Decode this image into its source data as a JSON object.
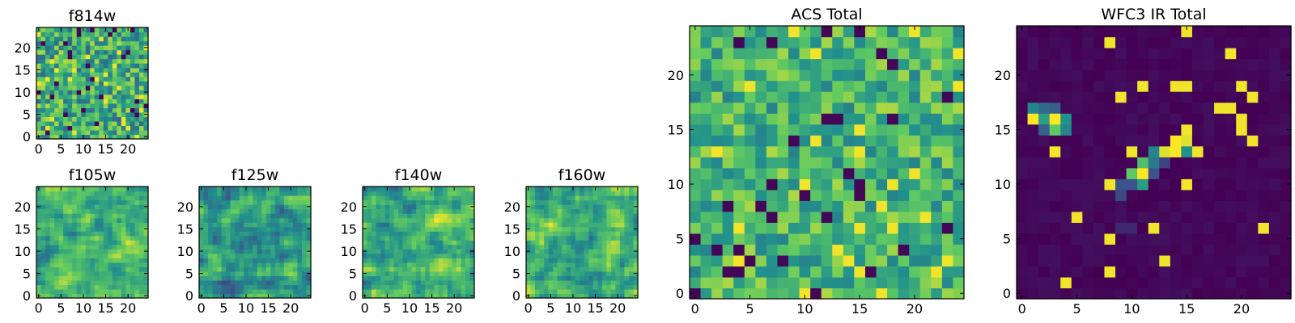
{
  "colormap": {
    "name": "viridis",
    "stops": [
      "#440154",
      "#3b528b",
      "#21918c",
      "#5ec962",
      "#fde725"
    ]
  },
  "chart_data": [
    {
      "type": "heatmap",
      "id": "f814w",
      "title": "f814w",
      "grid": [
        25,
        25
      ],
      "xticks": [
        "0",
        "5",
        "10",
        "15",
        "20"
      ],
      "yticks": [
        "0",
        "5",
        "10",
        "15",
        "20"
      ],
      "xlim": [
        0,
        25
      ],
      "ylim": [
        0,
        25
      ],
      "pattern": "noise",
      "seed": 814,
      "mean": 0.62,
      "spread": 0.3,
      "peaks": []
    },
    {
      "type": "heatmap",
      "id": "f105w",
      "title": "f105w",
      "grid": [
        25,
        25
      ],
      "xticks": [
        "0",
        "5",
        "10",
        "15",
        "20"
      ],
      "yticks": [
        "0",
        "5",
        "10",
        "15",
        "20"
      ],
      "xlim": [
        0,
        25
      ],
      "ylim": [
        0,
        25
      ],
      "pattern": "smooth",
      "seed": 105,
      "mean": 0.66,
      "spread": 0.28,
      "peaks": []
    },
    {
      "type": "heatmap",
      "id": "f125w",
      "title": "f125w",
      "grid": [
        25,
        25
      ],
      "xticks": [
        "0",
        "5",
        "10",
        "15",
        "20"
      ],
      "yticks": [
        "0",
        "5",
        "10",
        "15",
        "20"
      ],
      "xlim": [
        0,
        25
      ],
      "ylim": [
        0,
        25
      ],
      "pattern": "smooth",
      "seed": 125,
      "mean": 0.55,
      "spread": 0.3,
      "peaks": []
    },
    {
      "type": "heatmap",
      "id": "f140w",
      "title": "f140w",
      "grid": [
        25,
        25
      ],
      "xticks": [
        "0",
        "5",
        "10",
        "15",
        "20"
      ],
      "yticks": [
        "0",
        "5",
        "10",
        "15",
        "20"
      ],
      "xlim": [
        0,
        25
      ],
      "ylim": [
        0,
        25
      ],
      "pattern": "smooth",
      "seed": 140,
      "mean": 0.65,
      "spread": 0.28,
      "peaks": []
    },
    {
      "type": "heatmap",
      "id": "f160w",
      "title": "f160w",
      "grid": [
        25,
        25
      ],
      "xticks": [
        "0",
        "5",
        "10",
        "15",
        "20"
      ],
      "yticks": [
        "0",
        "5",
        "10",
        "15",
        "20"
      ],
      "xlim": [
        0,
        25
      ],
      "ylim": [
        0,
        25
      ],
      "pattern": "smooth",
      "seed": 160,
      "mean": 0.64,
      "spread": 0.28,
      "peaks": []
    },
    {
      "type": "heatmap",
      "id": "acs-total",
      "title": "ACS Total",
      "grid": [
        25,
        25
      ],
      "xticks": [
        "0",
        "5",
        "10",
        "15",
        "20"
      ],
      "yticks": [
        "0",
        "5",
        "10",
        "15",
        "20"
      ],
      "xlim": [
        0,
        25
      ],
      "ylim": [
        0,
        25
      ],
      "pattern": "noise",
      "seed": 2017,
      "mean": 0.66,
      "spread": 0.24,
      "peaks": []
    },
    {
      "type": "heatmap",
      "id": "wfc3-ir-total",
      "title": "WFC3 IR Total",
      "grid": [
        25,
        25
      ],
      "xticks": [
        "0",
        "5",
        "10",
        "15",
        "20"
      ],
      "yticks": [
        "0",
        "5",
        "10",
        "15",
        "20"
      ],
      "xlim": [
        0,
        25
      ],
      "ylim": [
        0,
        25
      ],
      "pattern": "background",
      "seed": 3,
      "mean": 0.02,
      "spread": 0.03,
      "peaks": [
        {
          "x": 1,
          "y": 17,
          "v": 0.45
        },
        {
          "x": 2,
          "y": 17,
          "v": 0.35
        },
        {
          "x": 3,
          "y": 17,
          "v": 0.3
        },
        {
          "x": 1,
          "y": 16,
          "v": 1.0
        },
        {
          "x": 2,
          "y": 16,
          "v": 0.55
        },
        {
          "x": 3,
          "y": 16,
          "v": 1.0
        },
        {
          "x": 4,
          "y": 16,
          "v": 0.5
        },
        {
          "x": 2,
          "y": 15,
          "v": 0.3
        },
        {
          "x": 3,
          "y": 15,
          "v": 0.75
        },
        {
          "x": 4,
          "y": 15,
          "v": 0.45
        },
        {
          "x": 14,
          "y": 14,
          "v": 1.0
        },
        {
          "x": 15,
          "y": 14,
          "v": 0.95
        },
        {
          "x": 12,
          "y": 13,
          "v": 0.45
        },
        {
          "x": 13,
          "y": 13,
          "v": 0.95
        },
        {
          "x": 14,
          "y": 13,
          "v": 1.0
        },
        {
          "x": 15,
          "y": 13,
          "v": 0.5
        },
        {
          "x": 11,
          "y": 12,
          "v": 0.7
        },
        {
          "x": 12,
          "y": 12,
          "v": 0.4
        },
        {
          "x": 13,
          "y": 12,
          "v": 0.2
        },
        {
          "x": 10,
          "y": 11,
          "v": 0.75
        },
        {
          "x": 11,
          "y": 11,
          "v": 1.0
        },
        {
          "x": 12,
          "y": 11,
          "v": 0.25
        },
        {
          "x": 9,
          "y": 10,
          "v": 0.25
        },
        {
          "x": 10,
          "y": 10,
          "v": 0.25
        },
        {
          "x": 11,
          "y": 10,
          "v": 0.55
        },
        {
          "x": 9,
          "y": 9,
          "v": 0.22
        },
        {
          "x": 9,
          "y": 6,
          "v": 0.12
        },
        {
          "x": 10,
          "y": 6,
          "v": 0.12
        }
      ]
    }
  ]
}
